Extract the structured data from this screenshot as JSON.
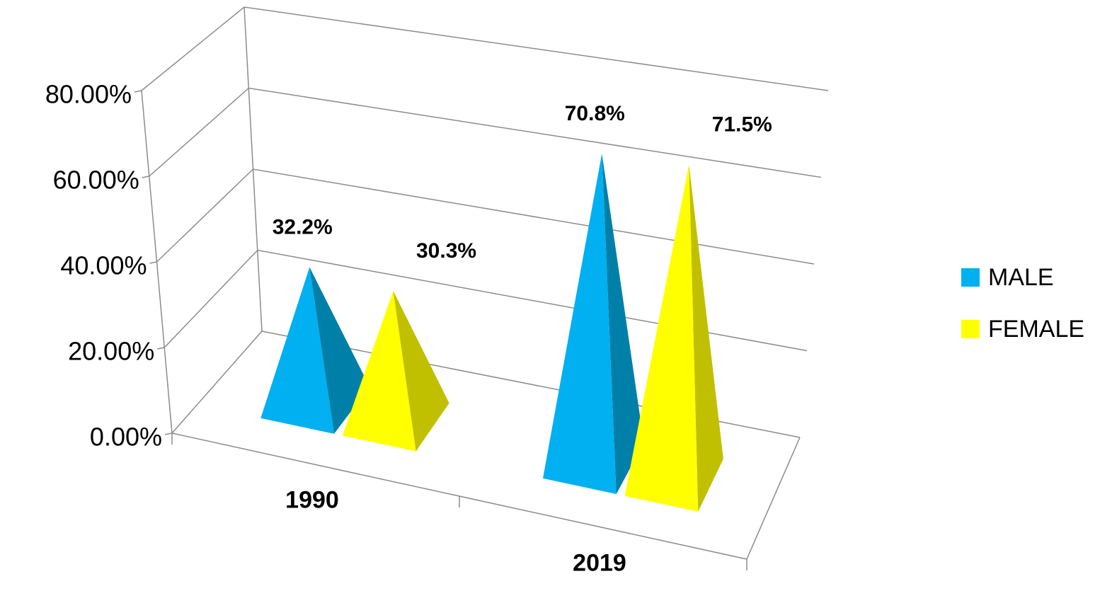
{
  "chart_data": {
    "type": "pyramid3d",
    "categories": [
      "1990",
      "2019"
    ],
    "series": [
      {
        "name": "MALE",
        "color": "#00b0f0",
        "side_color": "#0080a8",
        "values": [
          32.2,
          70.8
        ],
        "value_labels": [
          "32.2%",
          "70.8%"
        ]
      },
      {
        "name": "FEMALE",
        "color": "#ffff00",
        "side_color": "#c0c000",
        "values": [
          30.3,
          71.5
        ],
        "value_labels": [
          "30.3%",
          "71.5%"
        ]
      }
    ],
    "ylim": [
      0,
      80
    ],
    "yticks": [
      {
        "value": 0,
        "label": "0.00%"
      },
      {
        "value": 20,
        "label": "20.00%"
      },
      {
        "value": 40,
        "label": "40.00%"
      },
      {
        "value": 60,
        "label": "60.00%"
      },
      {
        "value": 80,
        "label": "80.00%"
      }
    ],
    "grid": true,
    "legend": "right"
  }
}
